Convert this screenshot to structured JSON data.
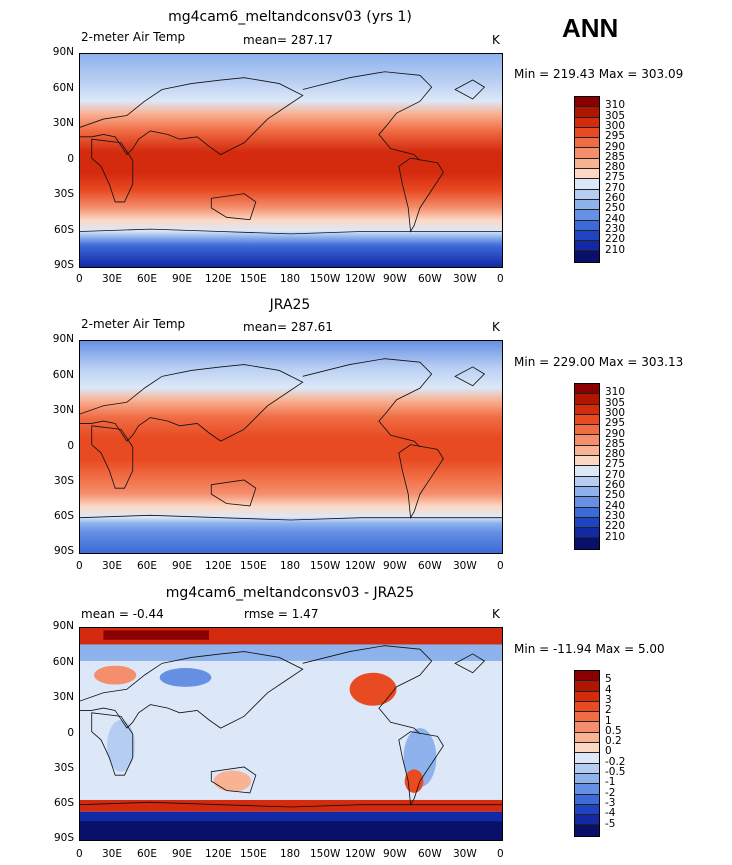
{
  "season": "ANN",
  "panels": [
    {
      "title": "mg4cam6_meltandconsv03 (yrs 1)",
      "left_label": "2-meter Air Temp",
      "center_label": "mean= 287.17",
      "right_label": "K",
      "minmax": "Min = 219.43 Max = 303.09",
      "scale": "temp"
    },
    {
      "title": "JRA25",
      "left_label": "2-meter Air Temp",
      "center_label": "mean= 287.61",
      "right_label": "K",
      "minmax": "Min = 229.00 Max = 303.13",
      "scale": "temp"
    },
    {
      "title": "mg4cam6_meltandconsv03 - JRA25",
      "left_label": "mean = -0.44",
      "center_label": "rmse = 1.47",
      "right_label": "K",
      "minmax": "Min = -11.94 Max = 5.00",
      "scale": "diff"
    }
  ],
  "lat_ticks": [
    "90N",
    "60N",
    "30N",
    "0",
    "30S",
    "60S",
    "90S"
  ],
  "lon_ticks": [
    "0",
    "30E",
    "60E",
    "90E",
    "120E",
    "150E",
    "180",
    "150W",
    "120W",
    "90W",
    "60W",
    "30W",
    "0"
  ],
  "temp_scale": {
    "labels": [
      "310",
      "305",
      "300",
      "295",
      "290",
      "285",
      "280",
      "275",
      "270",
      "260",
      "250",
      "240",
      "230",
      "220",
      "210"
    ],
    "colors": [
      "#8a0000",
      "#b01500",
      "#d42a0e",
      "#e84a22",
      "#f06c44",
      "#f48e6c",
      "#f8b294",
      "#fcd8c4",
      "#dce8f8",
      "#b6cdf2",
      "#8eb2ec",
      "#6690e4",
      "#3c6ad8",
      "#1e44c4",
      "#1228a4",
      "#08106a"
    ]
  },
  "diff_scale": {
    "labels": [
      "5",
      "4",
      "3",
      "2",
      "1",
      "0.5",
      "0.2",
      "0",
      "-0.2",
      "-0.5",
      "-1",
      "-2",
      "-3",
      "-4",
      "-5"
    ],
    "colors": [
      "#8a0000",
      "#b01500",
      "#d42a0e",
      "#e84a22",
      "#f06c44",
      "#f48e6c",
      "#f8b294",
      "#fcd8c4",
      "#dce8f8",
      "#b6cdf2",
      "#8eb2ec",
      "#6690e4",
      "#3c6ad8",
      "#1e44c4",
      "#1228a4",
      "#08106a"
    ]
  }
}
